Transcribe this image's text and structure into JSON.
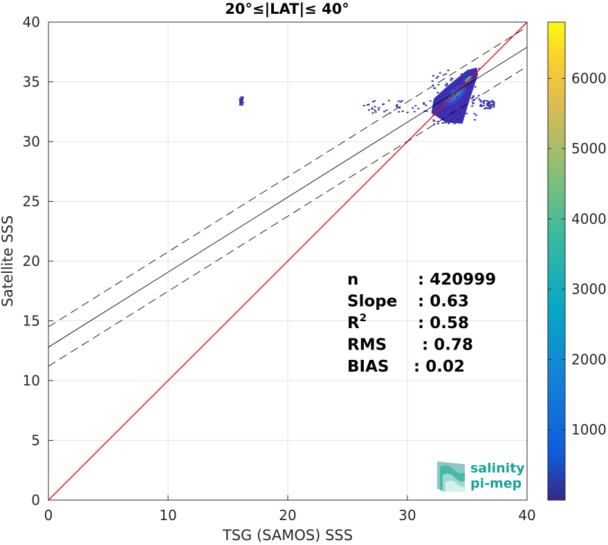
{
  "chart_data": {
    "type": "heatmap",
    "title": "20°≤|LAT|≤ 40°",
    "xlabel": "TSG (SAMOS) SSS",
    "ylabel": "Satellite SSS",
    "xlim": [
      0,
      40
    ],
    "ylim": [
      0,
      40
    ],
    "xticks": [
      "0",
      "10",
      "20",
      "30",
      "40"
    ],
    "yticks": [
      "0",
      "5",
      "10",
      "15",
      "20",
      "25",
      "30",
      "35",
      "40"
    ],
    "grid": true,
    "colorbar": {
      "range": [
        0,
        6800
      ],
      "ticks": [
        "1000",
        "2000",
        "3000",
        "4000",
        "5000",
        "6000"
      ],
      "colormap": "parula"
    },
    "lines": [
      {
        "name": "one-to-one",
        "color": "#ff0000",
        "style": "solid",
        "x": [
          0,
          40
        ],
        "y": [
          0,
          40
        ]
      },
      {
        "name": "regression",
        "color": "#000000",
        "style": "solid",
        "x": [
          0,
          40
        ],
        "y": [
          12.8,
          37.9
        ]
      },
      {
        "name": "regression-upper",
        "color": "#000000",
        "style": "dashed",
        "x": [
          0,
          40
        ],
        "y": [
          14.5,
          39.6
        ]
      },
      {
        "name": "regression-lower",
        "color": "#000000",
        "style": "dashed",
        "x": [
          0,
          40
        ],
        "y": [
          11.2,
          36.3
        ]
      }
    ],
    "density_clusters": [
      {
        "x": [
          32,
          36
        ],
        "y": [
          31.5,
          36.2
        ],
        "peak": 6000,
        "description": "main dense cluster"
      },
      {
        "x": [
          15.9,
          16.2
        ],
        "y": [
          33.0,
          33.8
        ],
        "peak": 400,
        "description": "isolated outlier patch"
      },
      {
        "x": [
          26,
          32
        ],
        "y": [
          32.4,
          33.5
        ],
        "peak": 300,
        "description": "sparse low-salinity tail"
      },
      {
        "x": [
          36,
          37.2
        ],
        "y": [
          32.8,
          33.5
        ],
        "peak": 200,
        "description": "sparse high-salinity tail"
      }
    ],
    "stats": [
      {
        "label": "n",
        "value": ": 420999"
      },
      {
        "label": "Slope",
        "value": ": 0.63"
      },
      {
        "label": "R",
        "sup": "2",
        "value": ": 0.58"
      },
      {
        "label": "RMS",
        "value": ": 0.78"
      },
      {
        "label": "BIAS",
        "value": ": 0.02"
      }
    ]
  },
  "logo": {
    "line1": "salinity",
    "line2": "pi-mep",
    "color": "#17a398"
  }
}
